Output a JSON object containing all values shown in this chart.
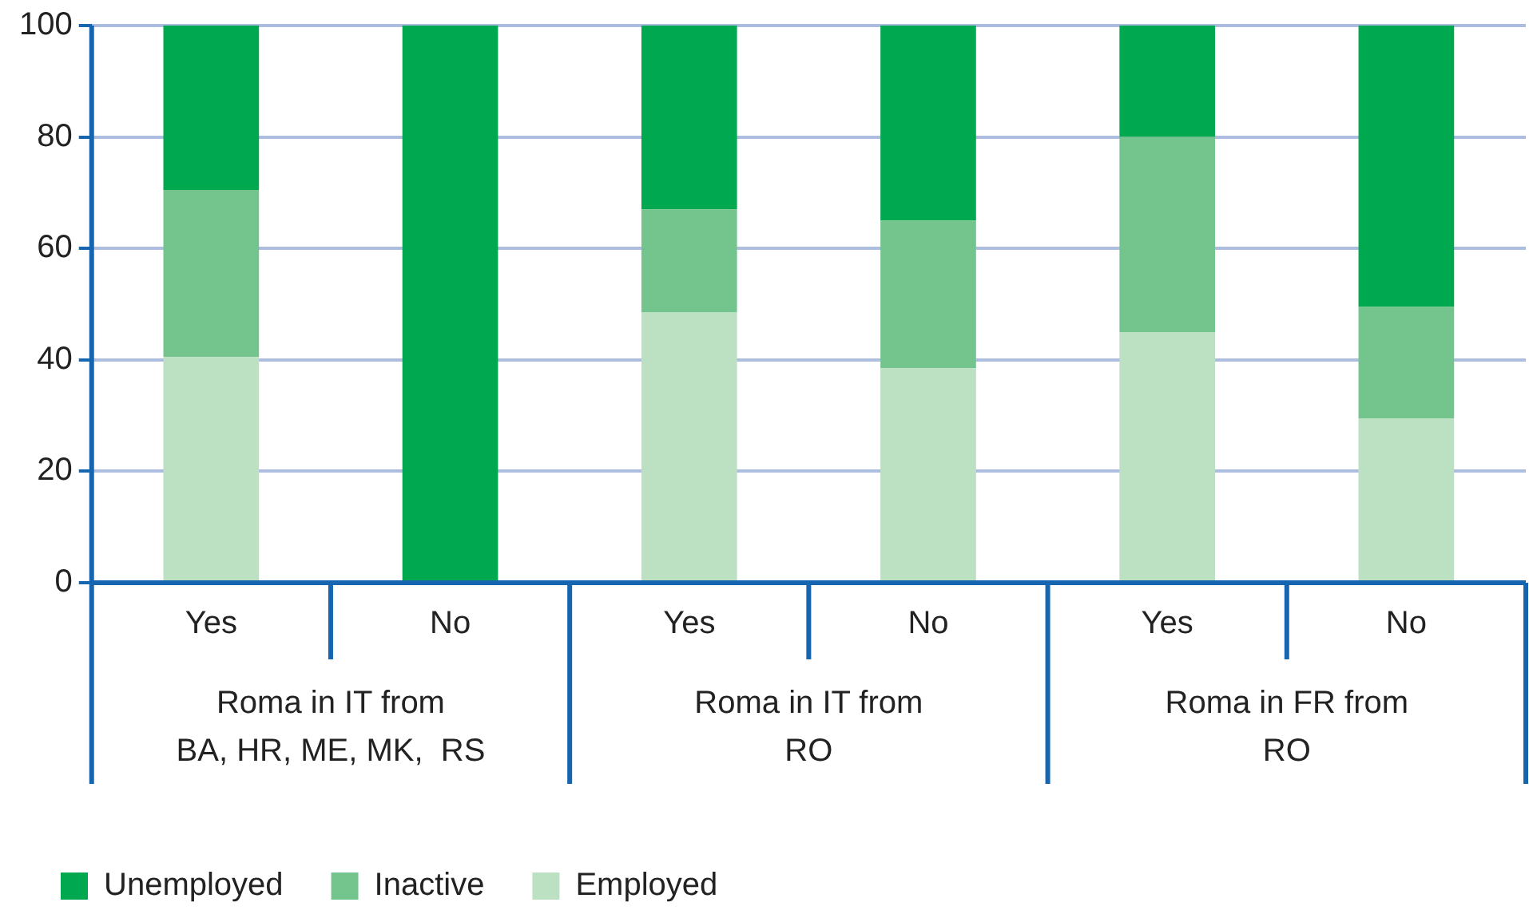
{
  "chart_data": {
    "type": "bar",
    "stacked": true,
    "categories": [
      "Yes",
      "No",
      "Yes",
      "No",
      "Yes",
      "No"
    ],
    "series": [
      {
        "name": "Employed",
        "color": "#bbe0c2",
        "values": [
          40.5,
          0,
          48.5,
          38.5,
          45,
          29.5
        ]
      },
      {
        "name": "Inactive",
        "color": "#74c48e",
        "values": [
          30,
          0,
          18.5,
          26.5,
          35,
          20
        ]
      },
      {
        "name": "Unemployed",
        "color": "#00a84f",
        "values": [
          29.5,
          100,
          33,
          35,
          20,
          50.5
        ]
      }
    ],
    "ylim": [
      0,
      100
    ],
    "yticks": [
      0,
      20,
      40,
      60,
      80,
      100
    ],
    "grid": "y",
    "legend": "bottom left",
    "annotations": [
      "Roma in IT from\nBA, HR, ME, MK,  RS",
      "Roma in IT from\nRO",
      "Roma in FR from\nRO"
    ]
  }
}
